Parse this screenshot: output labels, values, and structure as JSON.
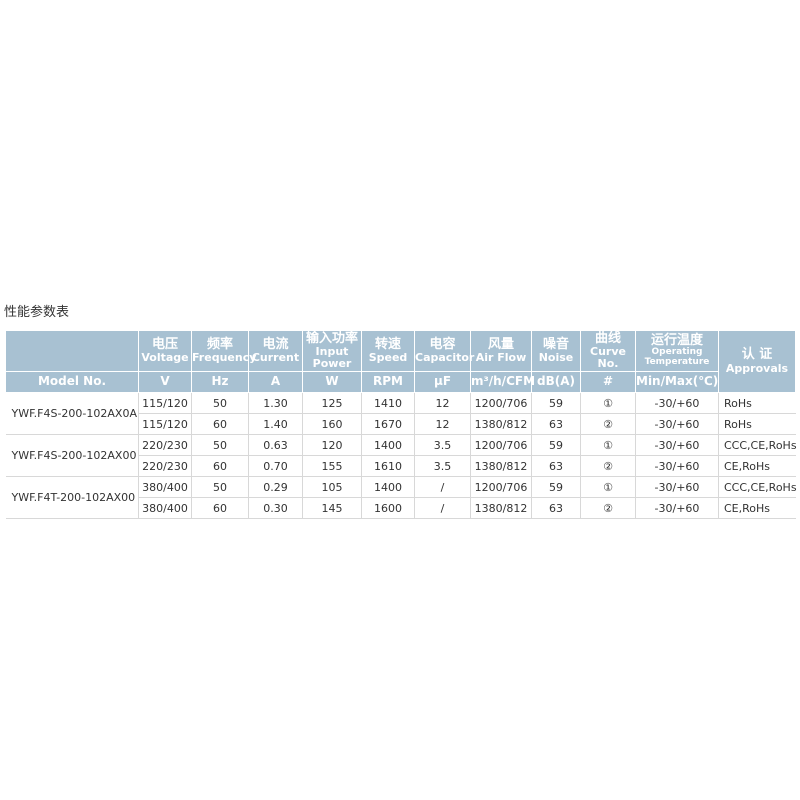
{
  "header": {
    "title": "性能参数表"
  },
  "table": {
    "columns": [
      {
        "unit": "Model No."
      },
      {
        "zh": "电压",
        "en": "Voltage",
        "unit": "V"
      },
      {
        "zh": "频率",
        "en": "Frequency",
        "unit": "Hz"
      },
      {
        "zh": "电流",
        "en": "Current",
        "unit": "A"
      },
      {
        "zh": "输入功率",
        "en": "Input Power",
        "unit": "W"
      },
      {
        "zh": "转速",
        "en": "Speed",
        "unit": "RPM"
      },
      {
        "zh": "电容",
        "en": "Capacitor",
        "unit": "μF"
      },
      {
        "zh": "风量",
        "en": "Air Flow",
        "unit": "m³/h/CFM"
      },
      {
        "zh": "噪音",
        "en": "Noise",
        "unit": "dB(A)"
      },
      {
        "zh": "曲线",
        "en": "Curve No.",
        "unit": "#"
      },
      {
        "zh": "运行温度",
        "en": "Operating Temperature",
        "unit": "Min/Max(℃)"
      },
      {
        "zh": "认 证",
        "en": "Approvals"
      }
    ],
    "groups": [
      {
        "model": "YWF.F4S-200-102AX0A",
        "rows": [
          [
            "115/120",
            "50",
            "1.30",
            "125",
            "1410",
            "12",
            "1200/706",
            "59",
            "①",
            "-30/+60",
            "RoHs"
          ],
          [
            "115/120",
            "60",
            "1.40",
            "160",
            "1670",
            "12",
            "1380/812",
            "63",
            "②",
            "-30/+60",
            "RoHs"
          ]
        ]
      },
      {
        "model": "YWF.F4S-200-102AX00",
        "rows": [
          [
            "220/230",
            "50",
            "0.63",
            "120",
            "1400",
            "3.5",
            "1200/706",
            "59",
            "①",
            "-30/+60",
            "CCC,CE,RoHs"
          ],
          [
            "220/230",
            "60",
            "0.70",
            "155",
            "1610",
            "3.5",
            "1380/812",
            "63",
            "②",
            "-30/+60",
            "CE,RoHs"
          ]
        ]
      },
      {
        "model": "YWF.F4T-200-102AX00",
        "rows": [
          [
            "380/400",
            "50",
            "0.29",
            "105",
            "1400",
            "/",
            "1200/706",
            "59",
            "①",
            "-30/+60",
            "CCC,CE,RoHs"
          ],
          [
            "380/400",
            "60",
            "0.30",
            "145",
            "1600",
            "/",
            "1380/812",
            "63",
            "②",
            "-30/+60",
            "CE,RoHs"
          ]
        ]
      }
    ]
  }
}
